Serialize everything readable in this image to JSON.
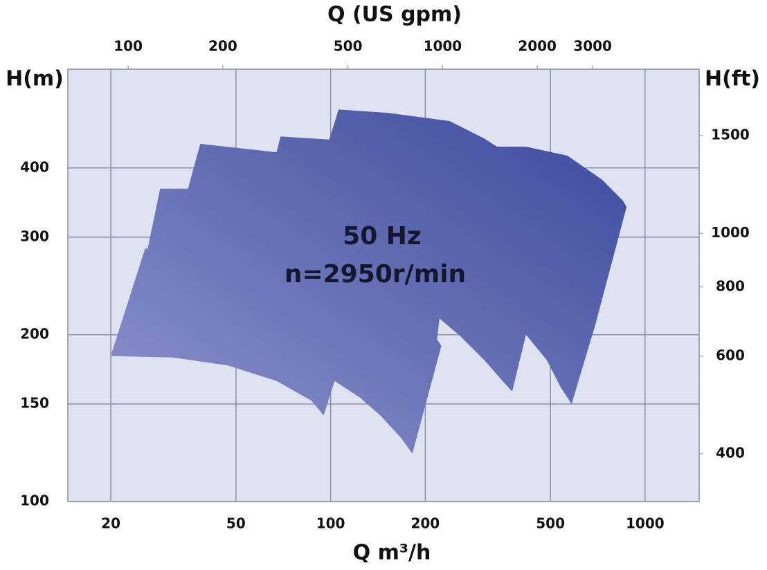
{
  "chart_data": {
    "type": "area",
    "x_label": "Q m³/h",
    "x2_label": "Q (US gpm)",
    "y_label": "H(m)",
    "y2_label": "H(ft)",
    "annotations": [
      "50 Hz",
      "n=2950r/min"
    ],
    "xlog": true,
    "ylog": true,
    "grid": true,
    "xlim": [
      14.6,
      1486
    ],
    "xticks": [
      20,
      50,
      100,
      200,
      500,
      1000
    ],
    "x2lim": [
      64.3,
      6543
    ],
    "x2ticks": [
      100,
      200,
      500,
      1000,
      2000,
      3000
    ],
    "ylim": [
      100,
      603
    ],
    "yticks": [
      100,
      150,
      200,
      300,
      400
    ],
    "y2lim": [
      328,
      1978
    ],
    "y2ticks": [
      400,
      600,
      800,
      1000,
      1500
    ],
    "background": "#dfe2f0",
    "grid_color": "#8a8fa8",
    "series": [
      {
        "colors": [
          "#8f94cc",
          "#3b4a9e"
        ],
        "x": [
          20.1,
          25.7,
          26.2,
          28.7,
          35.2,
          38.5,
          67.3,
          69.3,
          99,
          106,
          152,
          239,
          308,
          338,
          418,
          566,
          730,
          851,
          873,
          694,
          584,
          538,
          487,
          418,
          378,
          359,
          308,
          258,
          222,
          218,
          225,
          182,
          168,
          144,
          124,
          103,
          95,
          87,
          67.3,
          47.2,
          31.5,
          20.1
        ],
        "values": [
          185,
          286,
          286,
          367,
          367,
          442,
          427,
          456,
          450,
          510,
          503,
          486,
          452,
          437,
          437,
          421,
          381,
          349,
          340,
          208,
          150,
          161,
          180,
          200,
          158,
          163,
          180,
          199,
          214,
          196,
          191,
          122,
          130,
          143,
          154,
          165,
          143,
          152,
          165,
          176,
          182,
          183
        ]
      }
    ]
  }
}
